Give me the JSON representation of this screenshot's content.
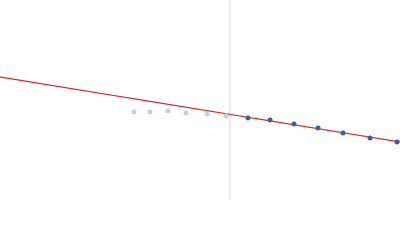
{
  "chart_data": {
    "type": "scatter",
    "xlim": [
      0,
      400
    ],
    "ylim": [
      0,
      200
    ],
    "vline": {
      "value": 230,
      "color": "#cdd4ea"
    },
    "fit": {
      "color": "#d62728",
      "x": [
        0,
        400
      ],
      "values": [
        123,
        58
      ]
    },
    "series": [
      {
        "color": "#c3cbe8",
        "x": [
          134,
          150,
          168,
          186,
          207,
          226
        ],
        "values": [
          88,
          88,
          89,
          87,
          86,
          84
        ]
      },
      {
        "color": "#3b5ba9",
        "x": [
          248,
          270,
          294,
          318,
          343,
          370,
          397
        ],
        "values": [
          82,
          80,
          76,
          72,
          67,
          62,
          58
        ]
      }
    ]
  }
}
